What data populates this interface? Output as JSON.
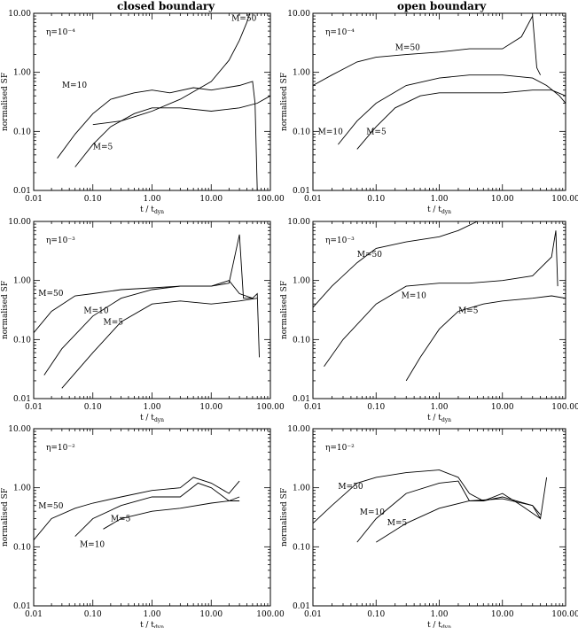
{
  "columns": [
    "closed boundary",
    "open boundary"
  ],
  "chart_data": [
    {
      "type": "line",
      "row": 0,
      "col": 0,
      "eta_label": "η=10⁻⁴",
      "xlabel": "t / t_dyn",
      "ylabel": "normalised SF",
      "xscale": "log",
      "yscale": "log",
      "xlim": [
        0.01,
        100
      ],
      "ylim": [
        0.01,
        10
      ],
      "xticks": [
        "0.01",
        "0.10",
        "1.00",
        "10.00",
        "100.00"
      ],
      "yticks": [
        "0.01",
        "0.10",
        "1.00",
        "10.00"
      ],
      "series": [
        {
          "name": "M=50",
          "points": [
            [
              0.1,
              0.13
            ],
            [
              0.3,
              0.15
            ],
            [
              1,
              0.22
            ],
            [
              3,
              0.35
            ],
            [
              10,
              0.7
            ],
            [
              20,
              1.6
            ],
            [
              30,
              3.5
            ],
            [
              40,
              7
            ],
            [
              45,
              10
            ]
          ],
          "label_at": [
            22,
            7.5
          ]
        },
        {
          "name": "M=10",
          "points": [
            [
              0.025,
              0.035
            ],
            [
              0.05,
              0.09
            ],
            [
              0.1,
              0.2
            ],
            [
              0.2,
              0.35
            ],
            [
              0.5,
              0.45
            ],
            [
              1,
              0.5
            ],
            [
              2,
              0.45
            ],
            [
              5,
              0.55
            ],
            [
              10,
              0.5
            ],
            [
              30,
              0.6
            ],
            [
              50,
              0.7
            ],
            [
              55,
              0.3
            ],
            [
              60,
              0.01
            ]
          ],
          "label_at": [
            0.03,
            0.55
          ]
        },
        {
          "name": "M=5",
          "points": [
            [
              0.05,
              0.025
            ],
            [
              0.1,
              0.06
            ],
            [
              0.2,
              0.12
            ],
            [
              0.5,
              0.2
            ],
            [
              1,
              0.25
            ],
            [
              3,
              0.25
            ],
            [
              10,
              0.22
            ],
            [
              30,
              0.25
            ],
            [
              60,
              0.3
            ],
            [
              100,
              0.4
            ]
          ],
          "label_at": [
            0.1,
            0.05
          ]
        }
      ]
    },
    {
      "type": "line",
      "row": 0,
      "col": 1,
      "eta_label": "η=10⁻⁴",
      "xlabel": "t / t_dyn",
      "ylabel": "normalised SF",
      "xscale": "log",
      "yscale": "log",
      "xlim": [
        0.01,
        100
      ],
      "ylim": [
        0.01,
        10
      ],
      "xticks": [
        "0.01",
        "0.10",
        "1.00",
        "10.00",
        "100.00"
      ],
      "yticks": [
        "0.01",
        "0.10",
        "1.00",
        "10.00"
      ],
      "series": [
        {
          "name": "M=50",
          "points": [
            [
              0.01,
              0.6
            ],
            [
              0.02,
              0.9
            ],
            [
              0.05,
              1.5
            ],
            [
              0.1,
              1.8
            ],
            [
              0.3,
              2.0
            ],
            [
              1,
              2.2
            ],
            [
              3,
              2.5
            ],
            [
              10,
              2.5
            ],
            [
              20,
              4
            ],
            [
              30,
              9
            ],
            [
              35,
              1.2
            ],
            [
              40,
              0.9
            ]
          ],
          "label_at": [
            0.2,
            2.4
          ]
        },
        {
          "name": "M=10",
          "points": [
            [
              0.025,
              0.06
            ],
            [
              0.05,
              0.15
            ],
            [
              0.1,
              0.3
            ],
            [
              0.3,
              0.6
            ],
            [
              1,
              0.8
            ],
            [
              3,
              0.9
            ],
            [
              10,
              0.9
            ],
            [
              30,
              0.8
            ],
            [
              50,
              0.6
            ],
            [
              80,
              0.4
            ],
            [
              100,
              0.3
            ]
          ],
          "label_at": [
            0.012,
            0.09
          ]
        },
        {
          "name": "M=5",
          "points": [
            [
              0.05,
              0.05
            ],
            [
              0.1,
              0.12
            ],
            [
              0.2,
              0.25
            ],
            [
              0.5,
              0.4
            ],
            [
              1,
              0.45
            ],
            [
              3,
              0.45
            ],
            [
              10,
              0.45
            ],
            [
              30,
              0.5
            ],
            [
              60,
              0.5
            ],
            [
              100,
              0.4
            ]
          ],
          "label_at": [
            0.07,
            0.09
          ]
        }
      ]
    },
    {
      "type": "line",
      "row": 1,
      "col": 0,
      "eta_label": "η=10⁻³",
      "xlabel": "t / t_dyn",
      "ylabel": "normalised SF",
      "xscale": "log",
      "yscale": "log",
      "xlim": [
        0.01,
        100
      ],
      "ylim": [
        0.01,
        10
      ],
      "xticks": [
        "0.01",
        "0.10",
        "1.00",
        "10.00",
        "100.00"
      ],
      "yticks": [
        "0.01",
        "0.10",
        "1.00",
        "10.00"
      ],
      "series": [
        {
          "name": "M=50",
          "points": [
            [
              0.01,
              0.13
            ],
            [
              0.02,
              0.3
            ],
            [
              0.05,
              0.55
            ],
            [
              0.1,
              0.6
            ],
            [
              0.3,
              0.7
            ],
            [
              1,
              0.75
            ],
            [
              3,
              0.8
            ],
            [
              10,
              0.8
            ],
            [
              20,
              0.9
            ],
            [
              30,
              6
            ],
            [
              35,
              0.5
            ],
            [
              50,
              0.5
            ],
            [
              60,
              0.6
            ],
            [
              65,
              0.05
            ]
          ],
          "label_at": [
            0.012,
            0.55
          ]
        },
        {
          "name": "M=10",
          "points": [
            [
              0.015,
              0.025
            ],
            [
              0.03,
              0.07
            ],
            [
              0.1,
              0.25
            ],
            [
              0.3,
              0.5
            ],
            [
              1,
              0.7
            ],
            [
              3,
              0.8
            ],
            [
              10,
              0.8
            ],
            [
              20,
              1.0
            ],
            [
              30,
              0.6
            ],
            [
              50,
              0.5
            ]
          ],
          "label_at": [
            0.07,
            0.28
          ]
        },
        {
          "name": "M=5",
          "points": [
            [
              0.03,
              0.015
            ],
            [
              0.1,
              0.06
            ],
            [
              0.3,
              0.2
            ],
            [
              1,
              0.4
            ],
            [
              3,
              0.45
            ],
            [
              10,
              0.4
            ],
            [
              30,
              0.45
            ],
            [
              60,
              0.5
            ]
          ],
          "label_at": [
            0.15,
            0.18
          ]
        }
      ]
    },
    {
      "type": "line",
      "row": 1,
      "col": 1,
      "eta_label": "η=10⁻³",
      "xlabel": "t / t_dyn",
      "ylabel": "normalised SF",
      "xscale": "log",
      "yscale": "log",
      "xlim": [
        0.01,
        100
      ],
      "ylim": [
        0.01,
        10
      ],
      "xticks": [
        "0.01",
        "0.10",
        "1.00",
        "10.00",
        "100.00"
      ],
      "yticks": [
        "0.01",
        "0.10",
        "1.00",
        "10.00"
      ],
      "series": [
        {
          "name": "M=50",
          "points": [
            [
              0.01,
              0.35
            ],
            [
              0.02,
              0.8
            ],
            [
              0.05,
              2.0
            ],
            [
              0.1,
              3.5
            ],
            [
              0.3,
              4.5
            ],
            [
              1,
              5.5
            ],
            [
              2,
              7
            ],
            [
              4,
              10
            ]
          ],
          "label_at": [
            0.05,
            2.5
          ]
        },
        {
          "name": "M=10",
          "points": [
            [
              0.015,
              0.035
            ],
            [
              0.03,
              0.1
            ],
            [
              0.1,
              0.4
            ],
            [
              0.3,
              0.8
            ],
            [
              1,
              0.9
            ],
            [
              3,
              0.9
            ],
            [
              10,
              1.0
            ],
            [
              30,
              1.2
            ],
            [
              60,
              2.5
            ],
            [
              70,
              7
            ],
            [
              75,
              0.8
            ]
          ],
          "label_at": [
            0.25,
            0.5
          ]
        },
        {
          "name": "M=5",
          "points": [
            [
              0.3,
              0.02
            ],
            [
              0.5,
              0.05
            ],
            [
              1,
              0.15
            ],
            [
              2,
              0.3
            ],
            [
              5,
              0.4
            ],
            [
              10,
              0.45
            ],
            [
              30,
              0.5
            ],
            [
              60,
              0.55
            ],
            [
              100,
              0.5
            ]
          ],
          "label_at": [
            2,
            0.28
          ]
        }
      ]
    },
    {
      "type": "line",
      "row": 2,
      "col": 0,
      "eta_label": "η=10⁻²",
      "xlabel": "t / t_dyn",
      "ylabel": "normalised SF",
      "xscale": "log",
      "yscale": "log",
      "xlim": [
        0.01,
        100
      ],
      "ylim": [
        0.01,
        10
      ],
      "xticks": [
        "0.01",
        "0.10",
        "1.00",
        "10.00",
        "100.00"
      ],
      "yticks": [
        "0.01",
        "0.10",
        "1.00",
        "10.00"
      ],
      "series": [
        {
          "name": "M=50",
          "points": [
            [
              0.01,
              0.13
            ],
            [
              0.02,
              0.3
            ],
            [
              0.05,
              0.45
            ],
            [
              0.1,
              0.55
            ],
            [
              0.3,
              0.7
            ],
            [
              1,
              0.9
            ],
            [
              3,
              1.0
            ],
            [
              5,
              1.5
            ],
            [
              10,
              1.2
            ],
            [
              20,
              0.8
            ],
            [
              30,
              1.3
            ]
          ],
          "label_at": [
            0.012,
            0.45
          ]
        },
        {
          "name": "M=10",
          "points": [
            [
              0.05,
              0.15
            ],
            [
              0.1,
              0.3
            ],
            [
              0.3,
              0.5
            ],
            [
              1,
              0.7
            ],
            [
              3,
              0.7
            ],
            [
              6,
              1.2
            ],
            [
              10,
              1.0
            ],
            [
              20,
              0.6
            ],
            [
              30,
              0.7
            ]
          ],
          "label_at": [
            0.06,
            0.1
          ]
        },
        {
          "name": "M=5",
          "points": [
            [
              0.15,
              0.2
            ],
            [
              0.3,
              0.3
            ],
            [
              1,
              0.4
            ],
            [
              3,
              0.45
            ],
            [
              10,
              0.55
            ],
            [
              20,
              0.6
            ],
            [
              30,
              0.6
            ]
          ],
          "label_at": [
            0.2,
            0.27
          ]
        }
      ]
    },
    {
      "type": "line",
      "row": 2,
      "col": 1,
      "eta_label": "η=10⁻²",
      "xlabel": "t / t_dyn",
      "ylabel": "normalised SF",
      "xscale": "log",
      "yscale": "log",
      "xlim": [
        0.01,
        100
      ],
      "ylim": [
        0.01,
        10
      ],
      "xticks": [
        "0.01",
        "0.10",
        "1.00",
        "10.00",
        "100.00"
      ],
      "yticks": [
        "0.01",
        "0.10",
        "1.00",
        "10.00"
      ],
      "series": [
        {
          "name": "M=50",
          "points": [
            [
              0.01,
              0.25
            ],
            [
              0.02,
              0.5
            ],
            [
              0.05,
              1.2
            ],
            [
              0.1,
              1.5
            ],
            [
              0.3,
              1.8
            ],
            [
              1,
              2.0
            ],
            [
              2,
              1.5
            ],
            [
              3,
              0.8
            ],
            [
              5,
              0.6
            ],
            [
              10,
              0.7
            ],
            [
              30,
              0.5
            ],
            [
              40,
              0.3
            ],
            [
              50,
              1.5
            ]
          ],
          "label_at": [
            0.025,
            0.95
          ]
        },
        {
          "name": "M=10",
          "points": [
            [
              0.05,
              0.12
            ],
            [
              0.1,
              0.3
            ],
            [
              0.3,
              0.8
            ],
            [
              1,
              1.2
            ],
            [
              2,
              1.3
            ],
            [
              3,
              0.6
            ],
            [
              5,
              0.6
            ],
            [
              10,
              0.8
            ],
            [
              20,
              0.5
            ],
            [
              40,
              0.3
            ]
          ],
          "label_at": [
            0.055,
            0.35
          ]
        },
        {
          "name": "M=5",
          "points": [
            [
              0.1,
              0.12
            ],
            [
              0.3,
              0.25
            ],
            [
              1,
              0.45
            ],
            [
              3,
              0.6
            ],
            [
              10,
              0.65
            ],
            [
              30,
              0.5
            ],
            [
              40,
              0.35
            ]
          ],
          "label_at": [
            0.15,
            0.23
          ]
        }
      ]
    }
  ]
}
